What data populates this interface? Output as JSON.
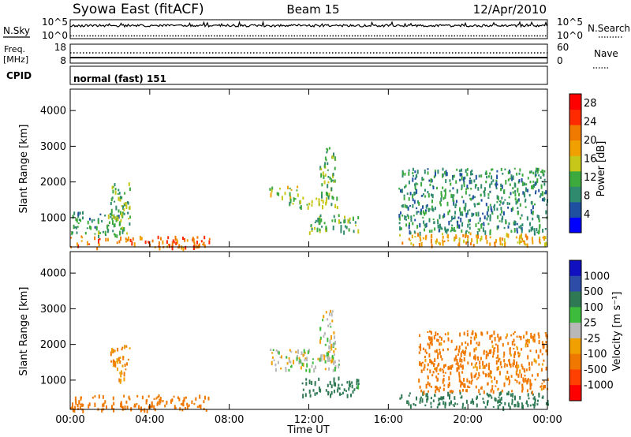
{
  "header": {
    "left": "Syowa East (fitACF)",
    "center": "Beam 15",
    "right": "12/Apr/2010"
  },
  "noise_panel": {
    "left_label": "N.Sky",
    "right_label": "N.Search",
    "left_ticks": [
      "10^5",
      "10^0"
    ],
    "right_ticks": [
      "10^5",
      "10^0"
    ]
  },
  "freq_panel": {
    "left_label_1": "Freq.",
    "left_label_2": "[MHz]",
    "right_label": "Nave",
    "left_ticks": [
      "18",
      "8"
    ],
    "right_ticks": [
      "60",
      "0"
    ]
  },
  "cpid_panel": {
    "label": "CPID",
    "value": "normal (fast) 151"
  },
  "colors": {
    "power_scale": [
      "#0000ff",
      "#1f4fa0",
      "#2f8a6e",
      "#3daa3d",
      "#c7c71a",
      "#f0a000",
      "#f07a00",
      "#ff2a00",
      "#ff0000"
    ],
    "velocity_scale": [
      "#1010c0",
      "#2c4ca8",
      "#2f7a55",
      "#3dbb3d",
      "#b8b8b8",
      "#f0a000",
      "#f07800",
      "#ff4000",
      "#ff0000"
    ]
  },
  "chart_data": [
    {
      "type": "heatmap",
      "title": "",
      "xlabel": "",
      "ylabel": "Slant Range [km]",
      "x_ticks": [
        "00:00",
        "04:00",
        "08:00",
        "12:00",
        "16:00",
        "20:00",
        "00:00"
      ],
      "y_ticks": [
        1000,
        2000,
        3000,
        4000
      ],
      "ylim": [
        180,
        4600
      ],
      "xlim_hours": [
        0,
        24
      ],
      "colorbar": {
        "label": "Power [dB]",
        "ticks": [
          4,
          8,
          12,
          16,
          20,
          24,
          28
        ],
        "range": [
          0,
          30
        ]
      },
      "regions": [
        {
          "t0": 0.0,
          "t1": 7.0,
          "r0": 180,
          "r1": 500,
          "value": 22
        },
        {
          "t0": 0.0,
          "t1": 3.0,
          "r0": 500,
          "r1": 1200,
          "value": 10
        },
        {
          "t0": 2.0,
          "t1": 3.0,
          "r0": 1000,
          "r1": 2000,
          "value": 12
        },
        {
          "t0": 10.0,
          "t1": 11.5,
          "r0": 1600,
          "r1": 1900,
          "value": 14
        },
        {
          "t0": 11.0,
          "t1": 13.5,
          "r0": 1300,
          "r1": 1600,
          "value": 13
        },
        {
          "t0": 12.5,
          "t1": 13.3,
          "r0": 1600,
          "r1": 3000,
          "value": 12
        },
        {
          "t0": 12.0,
          "t1": 14.5,
          "r0": 600,
          "r1": 1100,
          "value": 11
        },
        {
          "t0": 16.5,
          "t1": 24.0,
          "r0": 250,
          "r1": 600,
          "value": 18
        },
        {
          "t0": 16.5,
          "t1": 24.0,
          "r0": 600,
          "r1": 2400,
          "value": 9
        }
      ]
    },
    {
      "type": "heatmap",
      "title": "",
      "xlabel": "Time UT",
      "ylabel": "Slant Range [km]",
      "x_ticks": [
        "00:00",
        "04:00",
        "08:00",
        "12:00",
        "16:00",
        "20:00",
        "00:00"
      ],
      "y_ticks": [
        1000,
        2000,
        3000,
        4000
      ],
      "ylim": [
        180,
        4600
      ],
      "xlim_hours": [
        0,
        24
      ],
      "colorbar": {
        "label": "Velocity [m s⁻¹]",
        "ticks": [
          "1000",
          "500",
          "100",
          "25",
          "-25",
          "-100",
          "-500",
          "-1000"
        ]
      },
      "regions": [
        {
          "t0": 0.0,
          "t1": 7.0,
          "r0": 180,
          "r1": 600,
          "value": -200
        },
        {
          "t0": 2.0,
          "t1": 3.0,
          "r0": 1000,
          "r1": 2000,
          "value": -100
        },
        {
          "t0": 10.0,
          "t1": 13.5,
          "r0": 1300,
          "r1": 1900,
          "value": 0
        },
        {
          "t0": 12.5,
          "t1": 13.3,
          "r0": 1600,
          "r1": 3000,
          "value": 0
        },
        {
          "t0": 11.5,
          "t1": 14.5,
          "r0": 600,
          "r1": 1100,
          "value": 150
        },
        {
          "t0": 16.5,
          "t1": 24.0,
          "r0": 250,
          "r1": 700,
          "value": 250
        },
        {
          "t0": 17.5,
          "t1": 24.0,
          "r0": 700,
          "r1": 2400,
          "value": -150
        }
      ]
    }
  ]
}
